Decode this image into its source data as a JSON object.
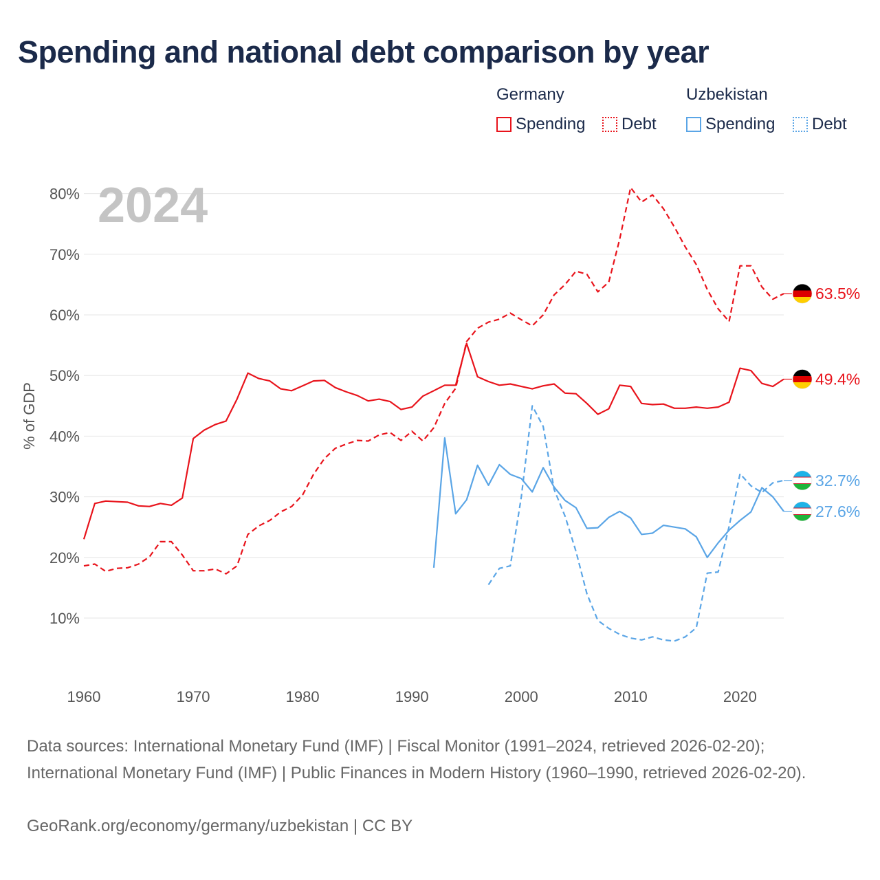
{
  "title": "Spending and national debt comparison by year",
  "legend": {
    "groups": [
      {
        "name": "Germany",
        "spending_label": "Spending",
        "debt_label": "Debt"
      },
      {
        "name": "Uzbekistan",
        "spending_label": "Spending",
        "debt_label": "Debt"
      }
    ]
  },
  "colors": {
    "germany": "#e8131b",
    "uzbekistan": "#5aa5e6"
  },
  "footer": {
    "sources": "Data sources: International Monetary Fund (IMF) | Fiscal Monitor (1991–2024, retrieved 2026-02-20); International Monetary Fund (IMF) | Public Finances in Modern History (1960–1990, retrieved 2026-02-20).",
    "credit": "GeoRank.org/economy/germany/uzbekistan | CC BY"
  },
  "chart_data": {
    "type": "line",
    "year_watermark": "2024",
    "ylabel": "% of GDP",
    "xlim": [
      1960,
      2024
    ],
    "ylim": [
      0,
      85
    ],
    "x_ticks": [
      1960,
      1970,
      1980,
      1990,
      2000,
      2010,
      2020
    ],
    "x_tick_labels": [
      "1960",
      "1970",
      "1980",
      "1990",
      "2000",
      "2010",
      "2020"
    ],
    "y_ticks": [
      10,
      20,
      30,
      40,
      50,
      60,
      70,
      80
    ],
    "y_tick_labels": [
      "10%",
      "20%",
      "30%",
      "40%",
      "50%",
      "60%",
      "70%",
      "80%"
    ],
    "series": [
      {
        "name": "Germany Spending",
        "country": "germany",
        "style": "solid",
        "end_label": "49.4%",
        "x": [
          1960,
          1961,
          1962,
          1963,
          1964,
          1965,
          1966,
          1967,
          1968,
          1969,
          1970,
          1971,
          1972,
          1973,
          1974,
          1975,
          1976,
          1977,
          1978,
          1979,
          1980,
          1981,
          1982,
          1983,
          1984,
          1985,
          1986,
          1987,
          1988,
          1989,
          1990,
          1991,
          1992,
          1993,
          1994,
          1995,
          1996,
          1997,
          1998,
          1999,
          2000,
          2001,
          2002,
          2003,
          2004,
          2005,
          2006,
          2007,
          2008,
          2009,
          2010,
          2011,
          2012,
          2013,
          2014,
          2015,
          2016,
          2017,
          2018,
          2019,
          2020,
          2021,
          2022,
          2023,
          2024
        ],
        "values": [
          23.0,
          28.9,
          29.3,
          29.2,
          29.1,
          28.5,
          28.4,
          28.9,
          28.6,
          29.8,
          39.6,
          41.0,
          41.9,
          42.5,
          46.1,
          50.4,
          49.5,
          49.1,
          47.8,
          47.5,
          48.3,
          49.1,
          49.2,
          48.0,
          47.3,
          46.7,
          45.8,
          46.1,
          45.7,
          44.4,
          44.8,
          46.6,
          47.5,
          48.4,
          48.4,
          55.3,
          49.8,
          49.0,
          48.4,
          48.6,
          48.2,
          47.8,
          48.3,
          48.6,
          47.1,
          47.0,
          45.4,
          43.6,
          44.5,
          48.4,
          48.2,
          45.4,
          45.2,
          45.3,
          44.6,
          44.6,
          44.8,
          44.6,
          44.8,
          45.6,
          51.2,
          50.8,
          48.7,
          48.2,
          49.4
        ]
      },
      {
        "name": "Germany Debt",
        "country": "germany",
        "style": "dashed",
        "end_label": "63.5%",
        "x": [
          1960,
          1961,
          1962,
          1963,
          1964,
          1965,
          1966,
          1967,
          1968,
          1969,
          1970,
          1971,
          1972,
          1973,
          1974,
          1975,
          1976,
          1977,
          1978,
          1979,
          1980,
          1981,
          1982,
          1983,
          1984,
          1985,
          1986,
          1987,
          1988,
          1989,
          1990,
          1991,
          1992,
          1993,
          1994,
          1995,
          1996,
          1997,
          1998,
          1999,
          2000,
          2001,
          2002,
          2003,
          2004,
          2005,
          2006,
          2007,
          2008,
          2009,
          2010,
          2011,
          2012,
          2013,
          2014,
          2015,
          2016,
          2017,
          2018,
          2019,
          2020,
          2021,
          2022,
          2023,
          2024
        ],
        "values": [
          18.6,
          18.9,
          17.7,
          18.2,
          18.3,
          18.9,
          20.1,
          22.6,
          22.6,
          20.4,
          17.8,
          17.8,
          18.1,
          17.3,
          18.6,
          23.8,
          25.2,
          26.1,
          27.5,
          28.4,
          30.3,
          33.7,
          36.3,
          38.0,
          38.7,
          39.3,
          39.2,
          40.2,
          40.6,
          39.3,
          40.8,
          39.2,
          41.4,
          45.4,
          47.9,
          55.6,
          57.8,
          58.8,
          59.3,
          60.3,
          59.2,
          58.2,
          60.0,
          63.3,
          65.0,
          67.2,
          66.7,
          63.8,
          65.4,
          72.5,
          81.0,
          78.6,
          79.8,
          77.5,
          74.5,
          71.2,
          68.3,
          64.2,
          61.0,
          58.9,
          68.1,
          68.1,
          64.6,
          62.6,
          63.5
        ]
      },
      {
        "name": "Uzbekistan Spending",
        "country": "uzbekistan",
        "style": "solid",
        "end_label": "27.6%",
        "x": [
          1992,
          1993,
          1994,
          1995,
          1996,
          1997,
          1998,
          1999,
          2000,
          2001,
          2002,
          2003,
          2004,
          2005,
          2006,
          2007,
          2008,
          2009,
          2010,
          2011,
          2012,
          2013,
          2014,
          2015,
          2016,
          2017,
          2018,
          2019,
          2020,
          2021,
          2022,
          2023,
          2024
        ],
        "values": [
          18.3,
          39.7,
          27.2,
          29.5,
          35.2,
          31.9,
          35.3,
          33.7,
          33.0,
          30.8,
          34.8,
          31.6,
          29.4,
          28.2,
          24.8,
          24.9,
          26.6,
          27.6,
          26.5,
          23.8,
          24.0,
          25.3,
          25.0,
          24.7,
          23.4,
          20.0,
          22.4,
          24.5,
          26.1,
          27.5,
          31.5,
          30.0,
          27.6
        ]
      },
      {
        "name": "Uzbekistan Debt",
        "country": "uzbekistan",
        "style": "dashed",
        "end_label": "32.7%",
        "x": [
          1997,
          1998,
          1999,
          2000,
          2001,
          2002,
          2003,
          2004,
          2005,
          2006,
          2007,
          2008,
          2009,
          2010,
          2011,
          2012,
          2013,
          2014,
          2015,
          2016,
          2017,
          2018,
          2019,
          2020,
          2021,
          2022,
          2023,
          2024
        ],
        "values": [
          15.5,
          18.2,
          18.6,
          30.0,
          45.0,
          41.6,
          31.2,
          26.8,
          21.0,
          14.0,
          9.6,
          8.3,
          7.3,
          6.7,
          6.4,
          6.9,
          6.4,
          6.2,
          6.9,
          8.4,
          17.4,
          17.6,
          25.1,
          33.8,
          31.8,
          30.7,
          32.3,
          32.7
        ]
      }
    ]
  }
}
